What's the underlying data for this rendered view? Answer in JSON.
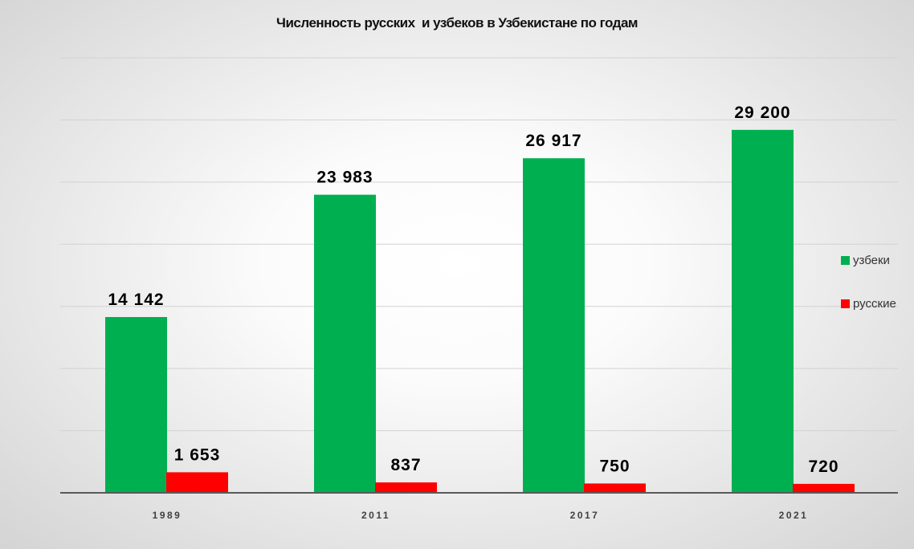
{
  "chart_data": {
    "type": "bar",
    "title": "Численность русских  и узбеков в Узбекистане по годам",
    "xlabel": "",
    "ylabel": "",
    "categories": [
      "1989",
      "2011",
      "2017",
      "2021"
    ],
    "series": [
      {
        "name": "узбеки",
        "color": "#00B050",
        "values": [
          14142,
          23983,
          26917,
          29200
        ],
        "labels": [
          "14 142",
          "23 983",
          "26 917",
          "29 200"
        ]
      },
      {
        "name": "русские",
        "color": "#FF0000",
        "values": [
          1653,
          837,
          750,
          720
        ],
        "labels": [
          "1 653",
          "837",
          "750",
          "720"
        ]
      }
    ],
    "ylim": [
      0,
      35000
    ],
    "grid": true,
    "grid_step": 5000,
    "y_tick_labels_visible": false,
    "legend_position": "right"
  }
}
